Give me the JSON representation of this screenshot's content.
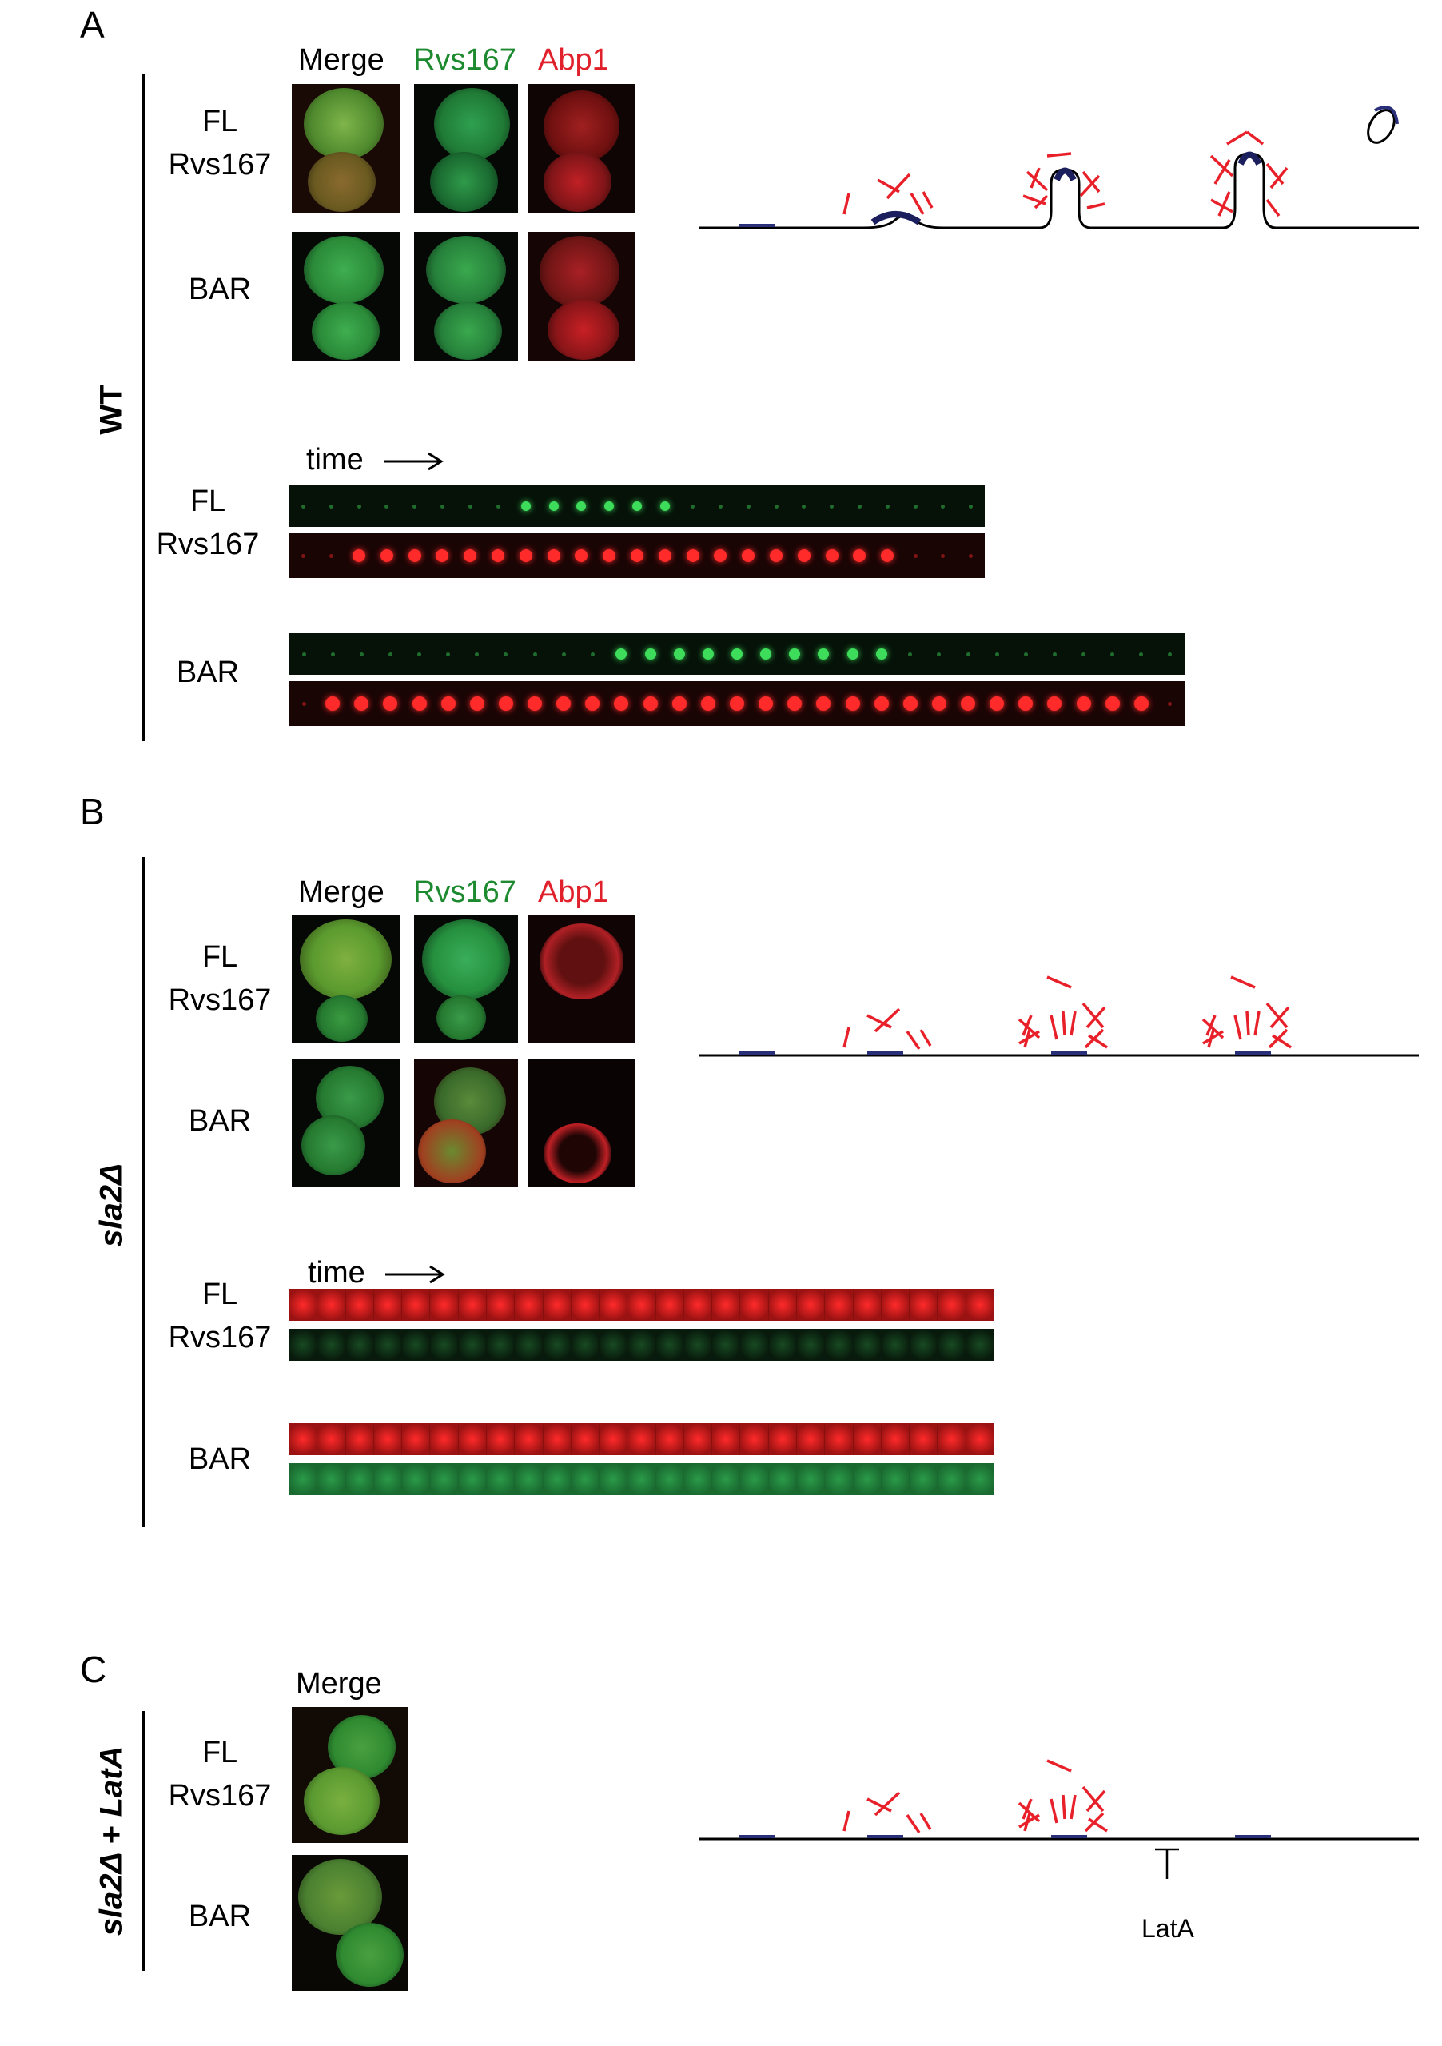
{
  "panels": {
    "A": {
      "letter": "A",
      "condition": "WT",
      "headers": {
        "merge": "Merge",
        "rvs": "Rvs167",
        "abp": "Abp1"
      },
      "rows": {
        "fl_line1": "FL",
        "fl_line2": "Rvs167",
        "bar": "BAR"
      },
      "kymo": {
        "time_label": "time",
        "fl_line1": "FL",
        "fl_line2": "Rvs167",
        "bar": "BAR"
      }
    },
    "B": {
      "letter": "B",
      "condition": "sla2Δ",
      "headers": {
        "merge": "Merge",
        "rvs": "Rvs167",
        "abp": "Abp1"
      },
      "rows": {
        "fl_line1": "FL",
        "fl_line2": "Rvs167",
        "bar": "BAR"
      },
      "kymo": {
        "time_label": "time",
        "fl_line1": "FL",
        "fl_line2": "Rvs167",
        "bar": "BAR"
      }
    },
    "C": {
      "letter": "C",
      "condition": "sla2Δ + LatA",
      "headers": {
        "merge": "Merge"
      },
      "rows": {
        "fl_line1": "FL",
        "fl_line2": "Rvs167",
        "bar": "BAR"
      },
      "diagram_label": "LatA"
    }
  },
  "colors": {
    "green": "#1e8a30",
    "red": "#e0202a",
    "membrane_coat": "#1b1f5e",
    "actin": "#e8202a"
  }
}
